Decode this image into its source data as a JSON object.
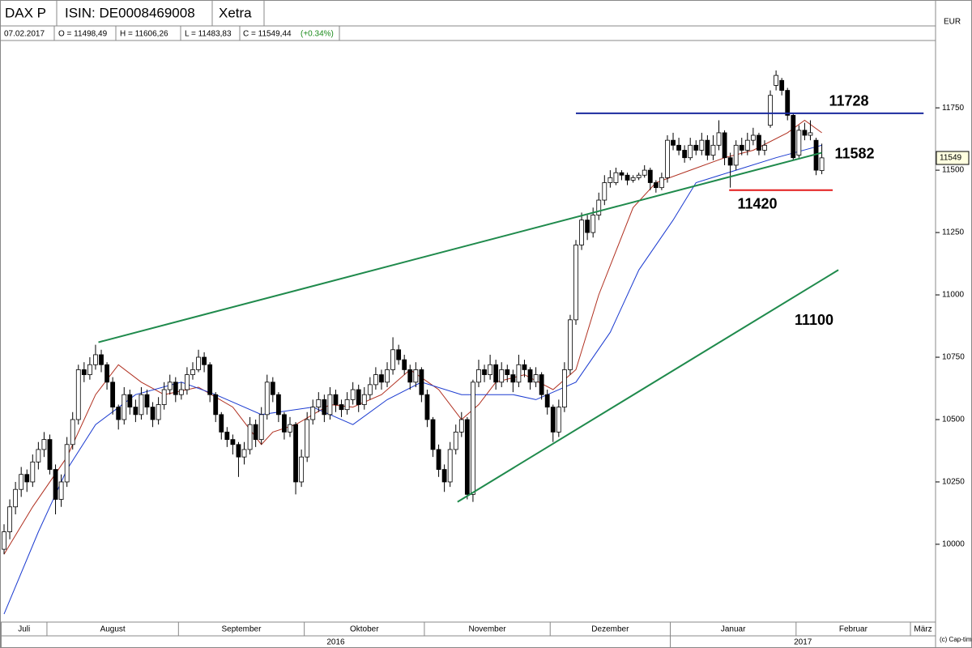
{
  "header": {
    "symbol": "DAX P",
    "isin": "ISIN: DE0008469008",
    "exchange": "Xetra",
    "currency": "EUR",
    "date": "07.02.2017",
    "open": "O = 11498,49",
    "high": "H = 11606,26",
    "low": "L = 11483,83",
    "close": "C = 11549,44",
    "change": "(+0.34%)",
    "copyright": "(c) Cap-timizer"
  },
  "chart_data": {
    "type": "candlestick",
    "ylim": [
      9688,
      12020
    ],
    "yticks": [
      10000,
      10250,
      10500,
      10750,
      11000,
      11250,
      11500,
      11750
    ],
    "last_price": 11549,
    "month_ticks": [
      {
        "value": 0,
        "label": "Juli"
      },
      {
        "value": 8,
        "label": "August"
      },
      {
        "value": 31,
        "label": "September"
      },
      {
        "value": 53,
        "label": "Oktober"
      },
      {
        "value": 74,
        "label": "November"
      },
      {
        "value": 96,
        "label": "Dezember"
      },
      {
        "value": 117,
        "label": "Januar"
      },
      {
        "value": 139,
        "label": "Februar"
      },
      {
        "value": 159,
        "label": "März"
      }
    ],
    "year_ticks": [
      {
        "value": 0,
        "label": "2016"
      },
      {
        "value": 117,
        "label": "2017"
      }
    ],
    "ohlc": [
      [
        9980,
        10080,
        9960,
        10050
      ],
      [
        10050,
        10180,
        10020,
        10150
      ],
      [
        10150,
        10250,
        10120,
        10220
      ],
      [
        10220,
        10310,
        10190,
        10280
      ],
      [
        10280,
        10300,
        10210,
        10250
      ],
      [
        10250,
        10360,
        10230,
        10330
      ],
      [
        10330,
        10410,
        10300,
        10380
      ],
      [
        10380,
        10450,
        10350,
        10420
      ],
      [
        10420,
        10440,
        10280,
        10300
      ],
      [
        10300,
        10320,
        10120,
        10180
      ],
      [
        10180,
        10280,
        10150,
        10250
      ],
      [
        10250,
        10430,
        10230,
        10400
      ],
      [
        10400,
        10530,
        10380,
        10500
      ],
      [
        10500,
        10720,
        10480,
        10700
      ],
      [
        10700,
        10730,
        10650,
        10680
      ],
      [
        10680,
        10750,
        10660,
        10720
      ],
      [
        10720,
        10800,
        10700,
        10760
      ],
      [
        10760,
        10780,
        10690,
        10720
      ],
      [
        10720,
        10730,
        10620,
        10650
      ],
      [
        10650,
        10670,
        10520,
        10550
      ],
      [
        10550,
        10560,
        10460,
        10500
      ],
      [
        10500,
        10630,
        10480,
        10600
      ],
      [
        10600,
        10620,
        10520,
        10550
      ],
      [
        10550,
        10580,
        10490,
        10520
      ],
      [
        10520,
        10630,
        10500,
        10600
      ],
      [
        10600,
        10620,
        10520,
        10550
      ],
      [
        10550,
        10570,
        10470,
        10500
      ],
      [
        10500,
        10590,
        10480,
        10560
      ],
      [
        10560,
        10650,
        10540,
        10620
      ],
      [
        10620,
        10680,
        10600,
        10650
      ],
      [
        10650,
        10670,
        10570,
        10600
      ],
      [
        10600,
        10650,
        10580,
        10620
      ],
      [
        10620,
        10710,
        10600,
        10680
      ],
      [
        10680,
        10730,
        10660,
        10700
      ],
      [
        10700,
        10780,
        10690,
        10750
      ],
      [
        10750,
        10770,
        10690,
        10720
      ],
      [
        10720,
        10730,
        10570,
        10600
      ],
      [
        10600,
        10610,
        10490,
        10520
      ],
      [
        10520,
        10530,
        10420,
        10450
      ],
      [
        10450,
        10470,
        10390,
        10420
      ],
      [
        10420,
        10440,
        10360,
        10400
      ],
      [
        10400,
        10410,
        10270,
        10350
      ],
      [
        10350,
        10410,
        10320,
        10380
      ],
      [
        10380,
        10510,
        10360,
        10480
      ],
      [
        10480,
        10500,
        10390,
        10420
      ],
      [
        10420,
        10550,
        10400,
        10520
      ],
      [
        10520,
        10680,
        10500,
        10650
      ],
      [
        10650,
        10670,
        10570,
        10600
      ],
      [
        10600,
        10610,
        10490,
        10520
      ],
      [
        10520,
        10530,
        10420,
        10450
      ],
      [
        10450,
        10510,
        10430,
        10480
      ],
      [
        10480,
        10490,
        10200,
        10250
      ],
      [
        10250,
        10380,
        10230,
        10350
      ],
      [
        10350,
        10530,
        10330,
        10500
      ],
      [
        10500,
        10580,
        10480,
        10550
      ],
      [
        10550,
        10610,
        10530,
        10580
      ],
      [
        10580,
        10600,
        10490,
        10520
      ],
      [
        10520,
        10630,
        10500,
        10600
      ],
      [
        10600,
        10620,
        10530,
        10560
      ],
      [
        10560,
        10580,
        10510,
        10540
      ],
      [
        10540,
        10610,
        10520,
        10580
      ],
      [
        10580,
        10650,
        10560,
        10620
      ],
      [
        10620,
        10640,
        10530,
        10560
      ],
      [
        10560,
        10630,
        10540,
        10600
      ],
      [
        10600,
        10670,
        10580,
        10640
      ],
      [
        10640,
        10710,
        10620,
        10680
      ],
      [
        10680,
        10700,
        10620,
        10650
      ],
      [
        10650,
        10730,
        10630,
        10700
      ],
      [
        10700,
        10830,
        10680,
        10780
      ],
      [
        10780,
        10800,
        10720,
        10740
      ],
      [
        10740,
        10760,
        10680,
        10700
      ],
      [
        10700,
        10720,
        10620,
        10650
      ],
      [
        10650,
        10730,
        10630,
        10700
      ],
      [
        10700,
        10710,
        10570,
        10600
      ],
      [
        10600,
        10620,
        10470,
        10500
      ],
      [
        10500,
        10510,
        10350,
        10380
      ],
      [
        10380,
        10400,
        10270,
        10300
      ],
      [
        10300,
        10320,
        10210,
        10250
      ],
      [
        10250,
        10410,
        10230,
        10380
      ],
      [
        10380,
        10480,
        10360,
        10450
      ],
      [
        10450,
        10530,
        10430,
        10500
      ],
      [
        10500,
        10510,
        10180,
        10200
      ],
      [
        10200,
        10660,
        10170,
        10650
      ],
      [
        10650,
        10740,
        10630,
        10700
      ],
      [
        10700,
        10720,
        10650,
        10680
      ],
      [
        10680,
        10760,
        10660,
        10720
      ],
      [
        10720,
        10740,
        10620,
        10650
      ],
      [
        10650,
        10730,
        10630,
        10700
      ],
      [
        10700,
        10720,
        10650,
        10680
      ],
      [
        10680,
        10700,
        10610,
        10650
      ],
      [
        10650,
        10760,
        10630,
        10720
      ],
      [
        10720,
        10740,
        10670,
        10700
      ],
      [
        10700,
        10710,
        10620,
        10650
      ],
      [
        10650,
        10710,
        10630,
        10680
      ],
      [
        10680,
        10690,
        10580,
        10600
      ],
      [
        10600,
        10620,
        10520,
        10550
      ],
      [
        10550,
        10560,
        10410,
        10450
      ],
      [
        10450,
        10580,
        10430,
        10550
      ],
      [
        10550,
        10730,
        10530,
        10700
      ],
      [
        10700,
        10920,
        10680,
        10900
      ],
      [
        10900,
        11220,
        10880,
        11200
      ],
      [
        11200,
        11330,
        11180,
        11300
      ],
      [
        11300,
        11320,
        11220,
        11250
      ],
      [
        11250,
        11350,
        11230,
        11320
      ],
      [
        11320,
        11410,
        11300,
        11380
      ],
      [
        11380,
        11480,
        11360,
        11450
      ],
      [
        11450,
        11500,
        11430,
        11470
      ],
      [
        11450,
        11510,
        11440,
        11490
      ],
      [
        11490,
        11500,
        11460,
        11480
      ],
      [
        11480,
        11490,
        11440,
        11460
      ],
      [
        11460,
        11480,
        11450,
        11470
      ],
      [
        11470,
        11490,
        11460,
        11480
      ],
      [
        11480,
        11520,
        11470,
        11500
      ],
      [
        11500,
        11510,
        11420,
        11450
      ],
      [
        11450,
        11460,
        11410,
        11430
      ],
      [
        11430,
        11490,
        11420,
        11470
      ],
      [
        11470,
        11640,
        11450,
        11620
      ],
      [
        11620,
        11650,
        11580,
        11600
      ],
      [
        11600,
        11630,
        11560,
        11580
      ],
      [
        11580,
        11600,
        11530,
        11550
      ],
      [
        11550,
        11630,
        11540,
        11600
      ],
      [
        11600,
        11620,
        11560,
        11580
      ],
      [
        11580,
        11650,
        11560,
        11620
      ],
      [
        11620,
        11640,
        11540,
        11560
      ],
      [
        11560,
        11640,
        11540,
        11600
      ],
      [
        11600,
        11700,
        11580,
        11650
      ],
      [
        11650,
        11660,
        11520,
        11550
      ],
      [
        11550,
        11570,
        11430,
        11520
      ],
      [
        11520,
        11620,
        11500,
        11600
      ],
      [
        11600,
        11630,
        11560,
        11580
      ],
      [
        11580,
        11650,
        11560,
        11620
      ],
      [
        11620,
        11670,
        11600,
        11640
      ],
      [
        11640,
        11650,
        11560,
        11580
      ],
      [
        11580,
        11620,
        11560,
        11600
      ],
      [
        11680,
        11820,
        11670,
        11800
      ],
      [
        11840,
        11900,
        11820,
        11880
      ],
      [
        11860,
        11870,
        11800,
        11820
      ],
      [
        11820,
        11830,
        11700,
        11720
      ],
      [
        11720,
        11730,
        11540,
        11550
      ],
      [
        11560,
        11680,
        11550,
        11660
      ],
      [
        11660,
        11690,
        11620,
        11640
      ],
      [
        11640,
        11700,
        11620,
        11650
      ],
      [
        11620,
        11630,
        11480,
        11500
      ],
      [
        11498.49,
        11606.26,
        11483.83,
        11549.44
      ]
    ],
    "moving_averages": [
      {
        "color": "#b03020",
        "x": [
          0,
          5,
          11,
          16,
          20,
          24,
          28,
          34,
          40,
          45,
          47,
          51,
          57,
          61,
          66,
          71,
          76,
          80,
          83,
          86,
          91,
          96,
          100,
          104,
          110,
          114,
          120,
          126,
          131,
          137,
          140,
          143
        ],
        "values": [
          9960,
          10150,
          10350,
          10600,
          10720,
          10650,
          10600,
          10630,
          10550,
          10400,
          10450,
          10480,
          10560,
          10550,
          10600,
          10700,
          10620,
          10500,
          10560,
          10650,
          10680,
          10620,
          10700,
          11000,
          11350,
          11450,
          11500,
          11550,
          11580,
          11650,
          11700,
          11650
        ]
      },
      {
        "color": "#1a3ad0",
        "x": [
          0,
          6,
          11,
          16,
          23,
          31,
          37,
          45,
          54,
          61,
          67,
          73,
          80,
          89,
          93,
          100,
          106,
          111,
          117,
          121,
          128,
          135,
          143
        ],
        "values": [
          9720,
          10050,
          10300,
          10480,
          10600,
          10650,
          10600,
          10520,
          10550,
          10480,
          10580,
          10650,
          10600,
          10600,
          10580,
          10650,
          10850,
          11100,
          11300,
          11450,
          11500,
          11550,
          11600
        ]
      }
    ],
    "annotations": [
      {
        "label": 11728,
        "color": "#1a2a9e",
        "points": [
          [
            100,
            11728
          ],
          [
            160.8,
            11728
          ]
        ]
      },
      {
        "label": 11582,
        "color": "#1f8a4c",
        "points": [
          [
            16.5,
            10810
          ],
          [
            143,
            11570
          ]
        ]
      },
      {
        "label": 11420,
        "color": "#e31a1a",
        "points": [
          [
            126.8,
            11420
          ],
          [
            144.9,
            11420
          ]
        ]
      },
      {
        "label": 11100,
        "color": "#1f8a4c",
        "points": [
          [
            79.3,
            10170
          ],
          [
            145.9,
            11100
          ]
        ]
      }
    ]
  }
}
